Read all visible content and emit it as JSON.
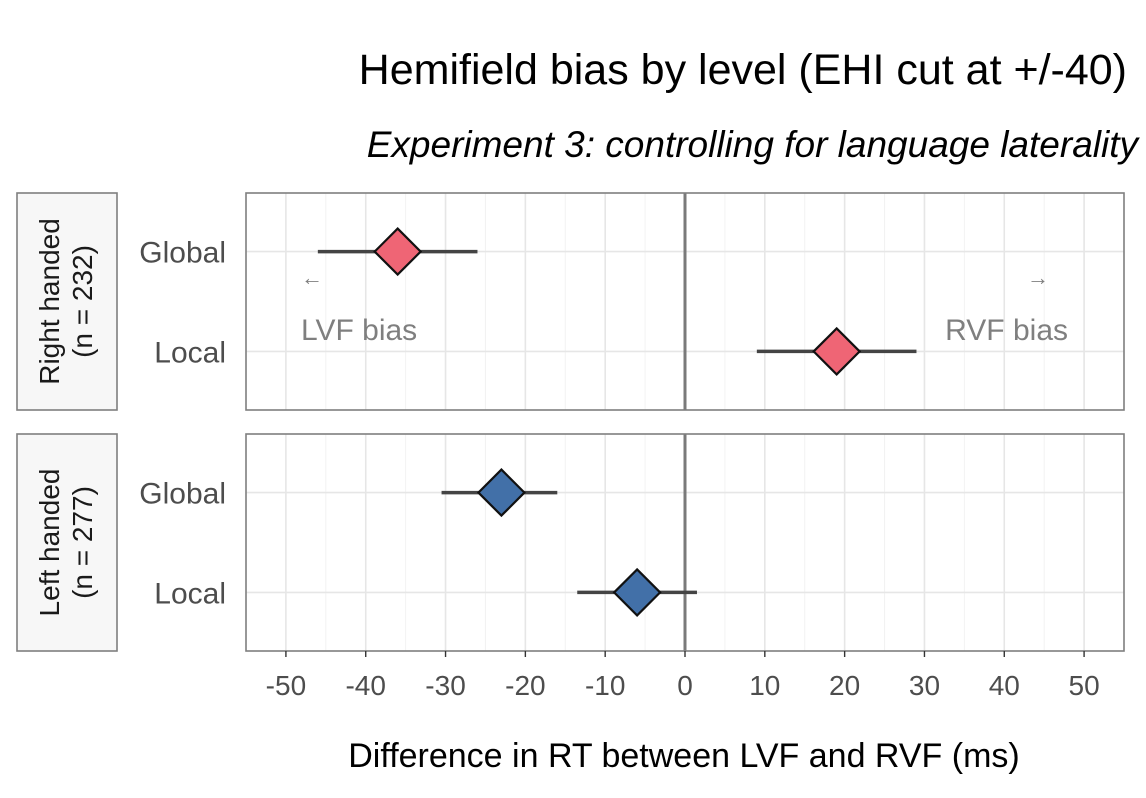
{
  "chart_data": {
    "type": "scatter",
    "title": "Hemifield bias by level (EHI cut at +/-40)",
    "subtitle": "Experiment 3: controlling for language laterality",
    "xlabel": "Difference in RT between LVF and RVF (ms)",
    "xlim": [
      -55,
      55
    ],
    "xticks": [
      -50,
      -40,
      -30,
      -20,
      -10,
      0,
      10,
      20,
      30,
      40,
      50
    ],
    "categories": [
      "Global",
      "Local"
    ],
    "grid": true,
    "reference_line": 0,
    "annotations": {
      "left_arrow": "←",
      "left_text": "LVF bias",
      "right_arrow": "→",
      "right_text": "RVF bias"
    },
    "panels": [
      {
        "strip_line1": "Right handed",
        "strip_line2": "(n = 232)",
        "color": "#EF6575",
        "points": [
          {
            "category": "Global",
            "value": -36,
            "low": -46,
            "high": -26
          },
          {
            "category": "Local",
            "value": 19,
            "low": 9,
            "high": 29
          }
        ]
      },
      {
        "strip_line1": "Left handed",
        "strip_line2": "(n = 277)",
        "color": "#4270A8",
        "points": [
          {
            "category": "Global",
            "value": -23,
            "low": -30.5,
            "high": -16
          },
          {
            "category": "Local",
            "value": -6,
            "low": -13.5,
            "high": 1.5
          }
        ]
      }
    ]
  }
}
